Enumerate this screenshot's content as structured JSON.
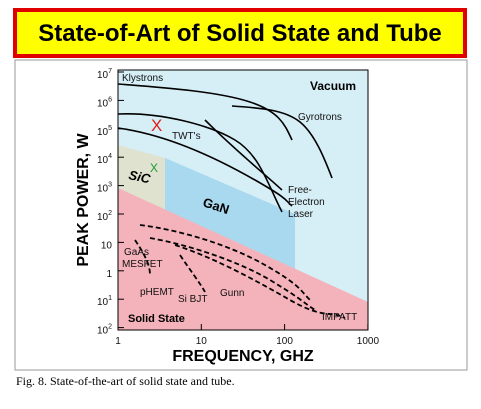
{
  "title": "State-of-Art of Solid State and Tube",
  "figure": {
    "y_axis_label": "PEAK POWER, W",
    "x_axis_label": "FREQUENCY, GHZ",
    "y_ticks": [
      {
        "base": "10",
        "exp": "7"
      },
      {
        "base": "10",
        "exp": "6"
      },
      {
        "base": "10",
        "exp": "5"
      },
      {
        "base": "10",
        "exp": "4"
      },
      {
        "base": "10",
        "exp": "3"
      },
      {
        "base": "10",
        "exp": "2"
      },
      {
        "base": "10"
      },
      {
        "base": "1"
      },
      {
        "base": "10",
        "exp": "1"
      },
      {
        "base": "10",
        "exp": "2"
      }
    ],
    "x_ticks": [
      "1",
      "10",
      "100",
      "1000"
    ],
    "labels": {
      "klystrons": "Klystrons",
      "vacuum": "Vacuum",
      "gyrotrons": "Gyrotrons",
      "twts": "TWT's",
      "red_mark": "X",
      "green_mark": "X",
      "sic": "SiC",
      "gan": "GaN",
      "fel_1": "Free-",
      "fel_2": "Electron",
      "fel_3": "Laser",
      "gaas_1": "GaAs",
      "gaas_2": "MESFET",
      "phemt": "pHEMT",
      "sibjt": "Si BJT",
      "gunn": "Gunn",
      "impatt": "IMPATT",
      "solid_state": "Solid State"
    }
  },
  "caption": "Fig. 8.  State-of-the-art of solid state and tube."
}
